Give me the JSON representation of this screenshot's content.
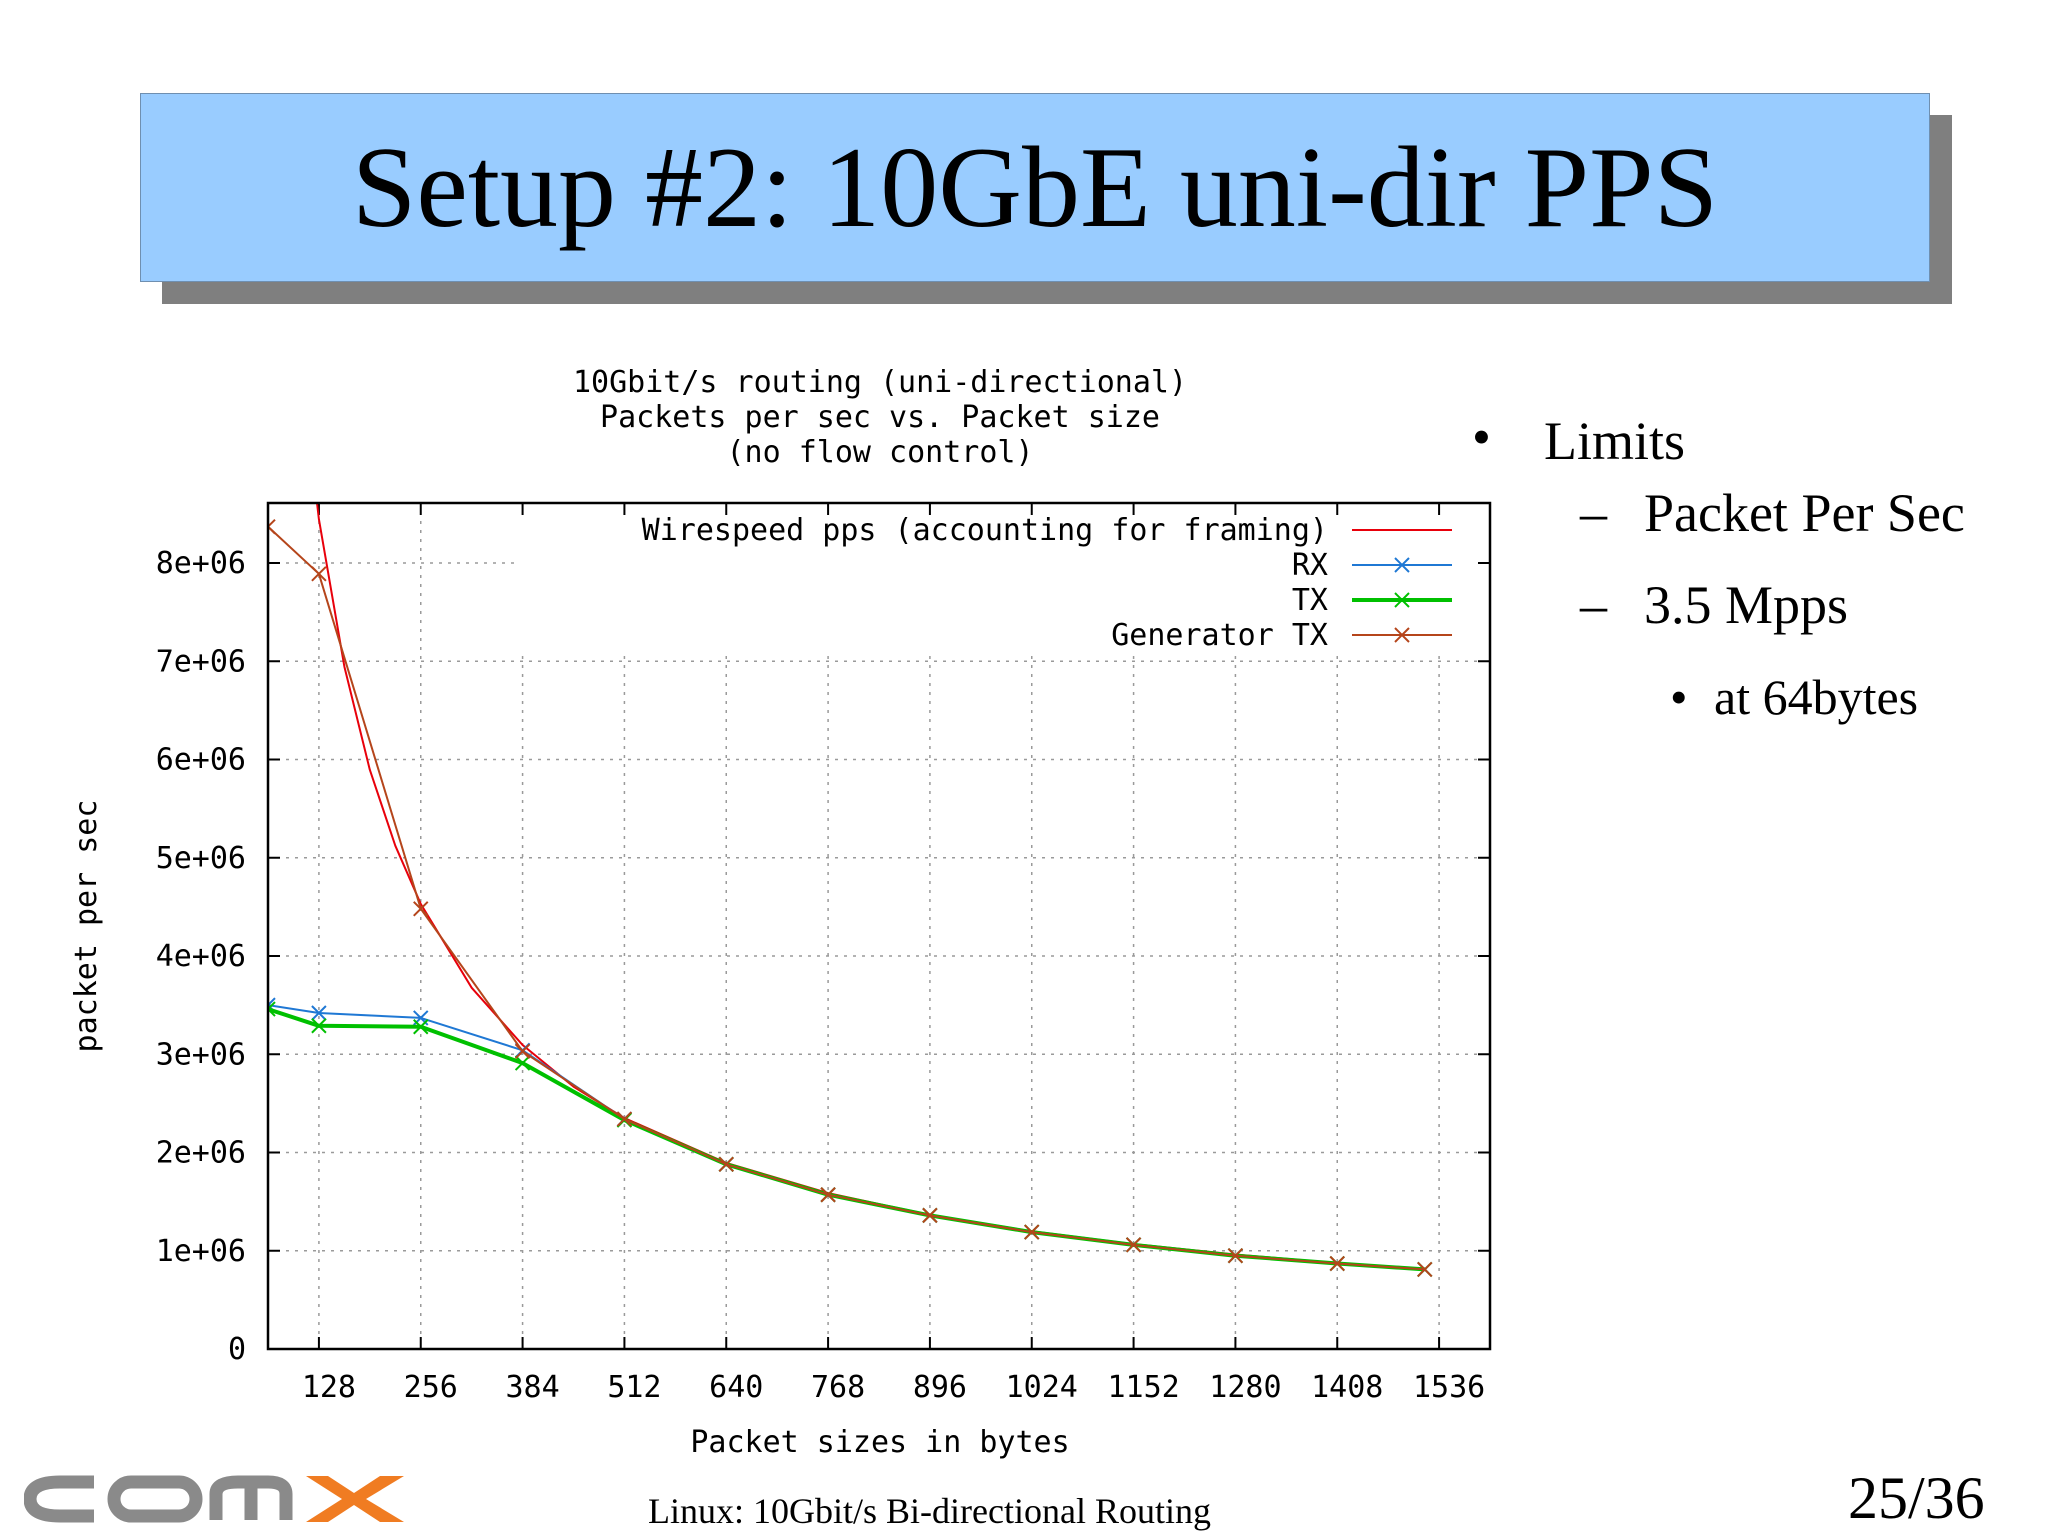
{
  "slide": {
    "title": "Setup #2: 10GbE uni-dir PPS",
    "footer": "Linux: 10Gbit/s Bi-directional Routing",
    "page": "25/36",
    "logo_text": "comx"
  },
  "bullets": {
    "level1": "Limits",
    "level2": [
      "Packet Per Sec",
      "3.5 Mpps"
    ],
    "level3": "at 64bytes"
  },
  "chart_data": {
    "type": "line",
    "title_lines": [
      "10Gbit/s routing (uni-directional)",
      "Packets per sec vs. Packet size",
      "(no flow control)"
    ],
    "xlabel": "Packet sizes in bytes",
    "ylabel": "packet per sec",
    "xlim": [
      64,
      1600
    ],
    "ylim": [
      0,
      8000000
    ],
    "grid": true,
    "legend_position": "top-right",
    "x_ticks": [
      128,
      256,
      384,
      512,
      640,
      768,
      896,
      1024,
      1152,
      1280,
      1408,
      1536
    ],
    "y_ticks": [
      {
        "value": 0,
        "label": "0"
      },
      {
        "value": 1000000,
        "label": "1e+06"
      },
      {
        "value": 2000000,
        "label": "2e+06"
      },
      {
        "value": 3000000,
        "label": "3e+06"
      },
      {
        "value": 4000000,
        "label": "4e+06"
      },
      {
        "value": 5000000,
        "label": "5e+06"
      },
      {
        "value": 6000000,
        "label": "6e+06"
      },
      {
        "value": 7000000,
        "label": "7e+06"
      },
      {
        "value": 8000000,
        "label": "8e+06"
      }
    ],
    "series": [
      {
        "name": "Wirespeed pps (accounting for framing)",
        "color": "#e8000b",
        "marker": "none",
        "x": [
          120,
          128,
          160,
          192,
          224,
          256,
          320,
          384,
          448,
          512,
          640,
          768,
          896,
          1024,
          1152,
          1280,
          1408,
          1518
        ],
        "y": [
          9000000,
          8445946,
          6944444,
          5896226,
          5122951,
          4528986,
          3676471,
          3094059,
          2670940,
          2349624,
          1893939,
          1586294,
          1364629,
          1197605,
          1067236,
          961538,
          874636,
          812744
        ]
      },
      {
        "name": "RX",
        "color": "#1f78d4",
        "marker": "x",
        "x": [
          64,
          128,
          256,
          384,
          512,
          640,
          768,
          896,
          1024,
          1152,
          1280,
          1408,
          1518
        ],
        "y": [
          3500000,
          3420000,
          3370000,
          3040000,
          2340000,
          1880000,
          1570000,
          1360000,
          1190000,
          1060000,
          950000,
          870000,
          810000
        ]
      },
      {
        "name": "TX",
        "color": "#00c000",
        "marker": "x",
        "x": [
          64,
          128,
          256,
          384,
          512,
          640,
          768,
          896,
          1024,
          1152,
          1280,
          1408,
          1518
        ],
        "y": [
          3460000,
          3290000,
          3280000,
          2910000,
          2330000,
          1880000,
          1570000,
          1360000,
          1190000,
          1060000,
          950000,
          870000,
          810000
        ]
      },
      {
        "name": "Generator TX",
        "color": "#b5451b",
        "marker": "x",
        "x": [
          64,
          128,
          256,
          384,
          512,
          640,
          768,
          896,
          1024,
          1152,
          1280,
          1408,
          1518
        ],
        "y": [
          8370000,
          7890000,
          4480000,
          3030000,
          2340000,
          1880000,
          1570000,
          1360000,
          1190000,
          1060000,
          950000,
          870000,
          810000
        ]
      }
    ]
  }
}
